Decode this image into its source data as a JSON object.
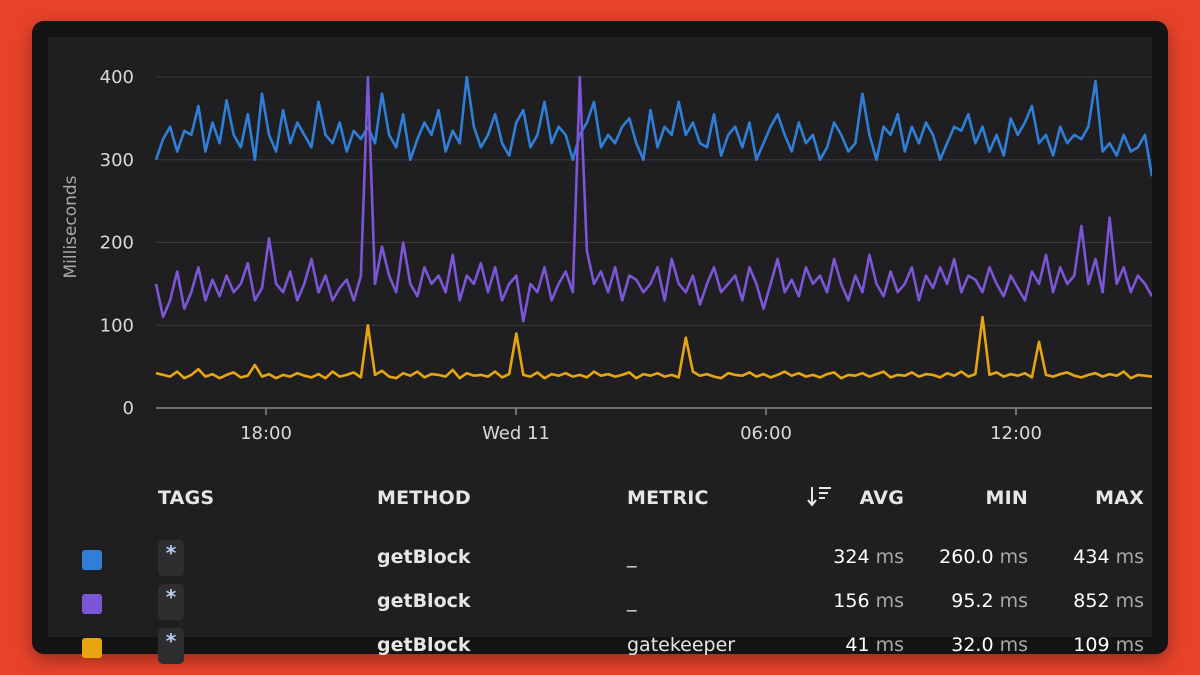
{
  "chart_data": {
    "type": "line",
    "ylabel": "Milliseconds",
    "ylim": [
      0,
      400
    ],
    "y_ticks": [
      "0",
      "100",
      "200",
      "300",
      "400"
    ],
    "x_ticks": [
      "18:00",
      "Wed 11",
      "06:00",
      "12:00"
    ],
    "grid": true,
    "series": [
      {
        "color": "#2f7fd8",
        "values": [
          300,
          325,
          340,
          310,
          335,
          330,
          365,
          310,
          345,
          320,
          372,
          330,
          315,
          355,
          300,
          380,
          330,
          310,
          360,
          320,
          345,
          330,
          315,
          370,
          330,
          320,
          345,
          310,
          335,
          325,
          340,
          320,
          380,
          330,
          315,
          355,
          300,
          325,
          345,
          330,
          360,
          310,
          335,
          320,
          400,
          340,
          315,
          330,
          355,
          320,
          305,
          345,
          360,
          315,
          330,
          370,
          320,
          340,
          330,
          300,
          330,
          345,
          370,
          315,
          330,
          320,
          340,
          350,
          320,
          300,
          360,
          315,
          340,
          330,
          370,
          330,
          345,
          320,
          315,
          355,
          305,
          330,
          340,
          315,
          345,
          300,
          320,
          340,
          355,
          330,
          310,
          345,
          320,
          330,
          300,
          315,
          345,
          330,
          310,
          320,
          380,
          330,
          300,
          340,
          330,
          355,
          310,
          340,
          320,
          345,
          330,
          300,
          320,
          340,
          335,
          355,
          320,
          340,
          310,
          330,
          305,
          350,
          330,
          345,
          365,
          320,
          330,
          305,
          340,
          320,
          330,
          325,
          340,
          395,
          310,
          320,
          305,
          330,
          310,
          315,
          330,
          280
        ],
        "name": ""
      },
      {
        "color": "#7b56d6",
        "values": [
          150,
          110,
          130,
          165,
          120,
          140,
          170,
          130,
          155,
          135,
          160,
          140,
          150,
          175,
          130,
          145,
          205,
          150,
          140,
          165,
          130,
          150,
          180,
          140,
          160,
          130,
          145,
          155,
          130,
          160,
          400,
          150,
          195,
          160,
          140,
          200,
          150,
          135,
          170,
          150,
          160,
          140,
          185,
          130,
          160,
          150,
          175,
          140,
          170,
          130,
          150,
          160,
          105,
          150,
          140,
          170,
          130,
          150,
          165,
          140,
          400,
          190,
          150,
          165,
          140,
          170,
          130,
          160,
          155,
          140,
          150,
          170,
          130,
          180,
          150,
          140,
          160,
          125,
          150,
          170,
          140,
          150,
          160,
          130,
          170,
          150,
          120,
          150,
          180,
          140,
          155,
          135,
          170,
          150,
          160,
          140,
          180,
          150,
          130,
          160,
          140,
          185,
          150,
          135,
          165,
          140,
          150,
          170,
          130,
          160,
          145,
          170,
          150,
          180,
          140,
          160,
          155,
          140,
          170,
          150,
          135,
          160,
          145,
          130,
          165,
          150,
          185,
          140,
          170,
          150,
          160,
          220,
          150,
          180,
          140,
          230,
          150,
          170,
          140,
          160,
          150,
          135
        ],
        "name": ""
      },
      {
        "color": "#e6a511",
        "values": [
          42,
          40,
          38,
          44,
          36,
          40,
          47,
          38,
          41,
          36,
          40,
          43,
          37,
          39,
          52,
          38,
          41,
          36,
          40,
          38,
          42,
          39,
          37,
          41,
          36,
          44,
          38,
          40,
          43,
          37,
          100,
          40,
          45,
          38,
          36,
          42,
          39,
          44,
          37,
          41,
          40,
          38,
          46,
          36,
          42,
          39,
          40,
          38,
          44,
          37,
          41,
          90,
          40,
          38,
          43,
          36,
          41,
          39,
          42,
          38,
          40,
          37,
          44,
          39,
          41,
          38,
          40,
          43,
          36,
          41,
          39,
          42,
          38,
          40,
          37,
          85,
          44,
          39,
          41,
          38,
          36,
          42,
          40,
          39,
          43,
          38,
          41,
          37,
          40,
          44,
          39,
          42,
          38,
          40,
          37,
          41,
          43,
          36,
          40,
          39,
          42,
          38,
          41,
          44,
          37,
          40,
          39,
          43,
          38,
          41,
          40,
          37,
          42,
          39,
          44,
          38,
          41,
          110,
          40,
          43,
          38,
          41,
          39,
          42,
          37,
          80,
          40,
          38,
          41,
          43,
          39,
          37,
          40,
          42,
          38,
          41,
          39,
          44,
          36,
          40,
          39,
          38
        ]
      }
    ]
  },
  "legend": {
    "headers": {
      "tags": "TAGS",
      "method": "METHOD",
      "metric": "METRIC",
      "avg": "AVG",
      "min": "MIN",
      "max": "MAX"
    },
    "unit": "ms",
    "rows": [
      {
        "color": "#2f7fd8",
        "tag": "*",
        "method": "getBlock",
        "metric": "_",
        "avg": "324",
        "min": "260.0",
        "max": "434"
      },
      {
        "color": "#7b56d6",
        "tag": "*",
        "method": "getBlock",
        "metric": "_",
        "avg": "156",
        "min": "95.2",
        "max": "852"
      },
      {
        "color": "#e6a511",
        "tag": "*",
        "method": "getBlock",
        "metric": "gatekeeper",
        "avg": "41",
        "min": "32.0",
        "max": "109"
      }
    ]
  }
}
